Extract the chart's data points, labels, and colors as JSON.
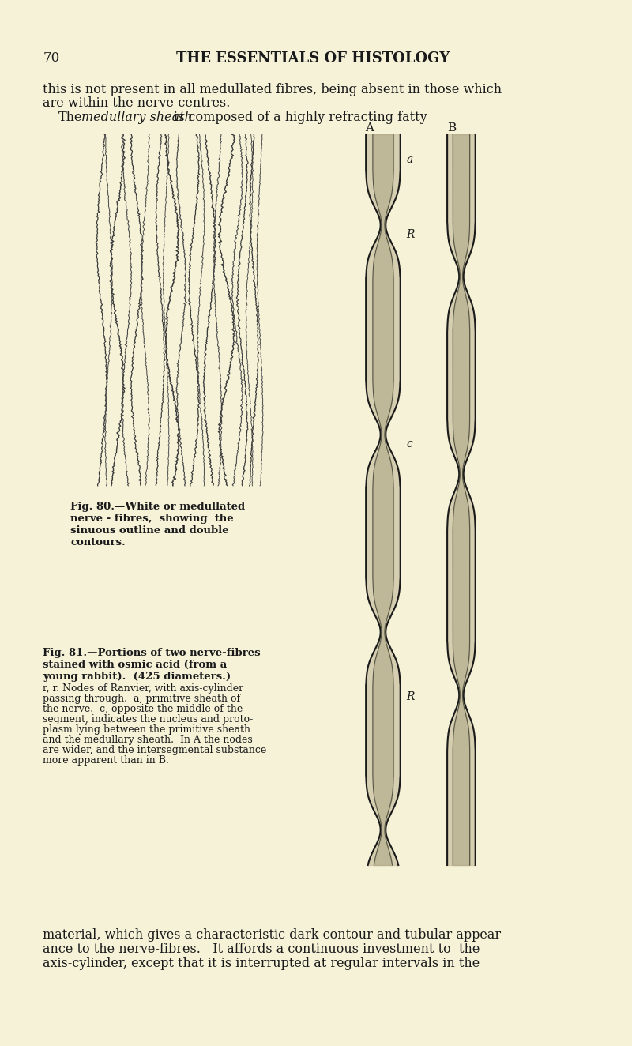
{
  "bg_color": "#f5f2d8",
  "page_number": "70",
  "header": "THE ESSENTIALS OF HISTOLOGY",
  "top_text_line1": "this is not present in all medullated fibres, being absent in those which",
  "top_text_line2": "are within the nerve-centres.",
  "top_text_line3": "The",
  "top_text_italic": "medullary sheath",
  "top_text_line3b": "is composed of a highly refracting fatty",
  "fig80_caption_line1": "Fig. 80.—White or medullated",
  "fig80_caption_line2": "nerve - fibres,  showing  the",
  "fig80_caption_line3": "sinuous outline and double",
  "fig80_caption_line4": "contours.",
  "fig81_caption_line1": "Fig. 81.—Portions of two nerve-fibres",
  "fig81_caption_line2": "stained with osmic acid (from a",
  "fig81_caption_line3": "young rabbit).  (425 diameters.)",
  "fig81_body_line1": "r, r. Nodes of Ranvier, with axis-cylinder",
  "fig81_body_line2": "passing through.  a, primitive sheath of",
  "fig81_body_line3": "the nerve.  c, opposite the middle of the",
  "fig81_body_line4": "segment, indicates the nucleus and proto-",
  "fig81_body_line5": "plasm lying between the primitive sheath",
  "fig81_body_line6": "and the medullary sheath.  In A the nodes",
  "fig81_body_line7": "are wider, and the intersegmental substance",
  "fig81_body_line8": "more apparent than in B.",
  "bottom_text_line1": "material, which gives a characteristic dark contour and tubular appear-",
  "bottom_text_line2": "ance to the nerve-fibres.   It affords a continuous investment to  the",
  "bottom_text_line3": "axis-cylinder, except that it is interrupted at regular intervals in the",
  "label_A": "A",
  "label_B": "B",
  "label_a": "a",
  "label_R1": "R",
  "label_c": "c",
  "label_R2": "R",
  "text_color": "#1a1a1a",
  "figure_color": "#2a2a2a"
}
